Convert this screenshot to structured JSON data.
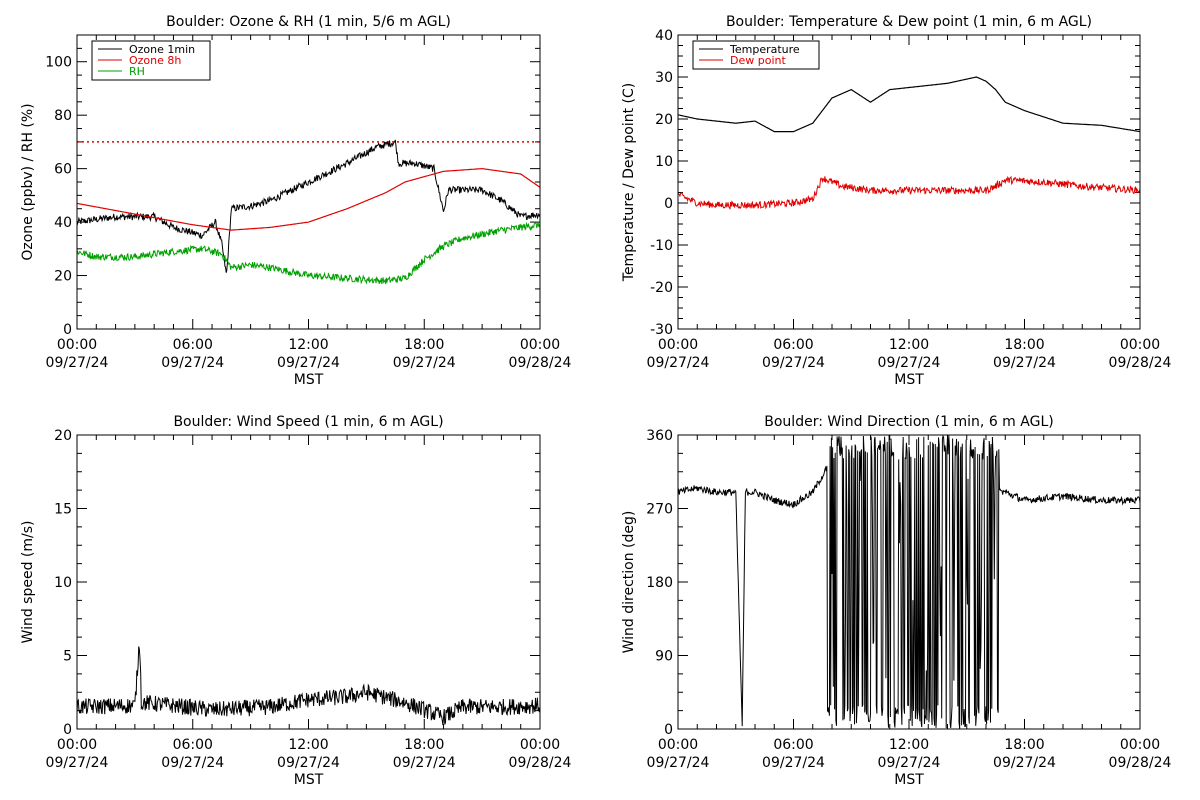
{
  "x_axis": {
    "label": "MST",
    "range": [
      "09/27/24 00:00",
      "09/28/24 00:00"
    ],
    "ticks": [
      {
        "time": "09/27/24 00:00",
        "hour": "00:00",
        "date": "09/27/24"
      },
      {
        "time": "09/27/24 06:00",
        "hour": "06:00",
        "date": "09/27/24"
      },
      {
        "time": "09/27/24 12:00",
        "hour": "12:00",
        "date": "09/27/24"
      },
      {
        "time": "09/27/24 18:00",
        "hour": "18:00",
        "date": "09/27/24"
      },
      {
        "time": "09/28/24 00:00",
        "hour": "00:00",
        "date": "09/28/24"
      }
    ]
  },
  "colors": {
    "black": "#000000",
    "red": "#e00000",
    "green": "#00a000",
    "background": "#ffffff"
  },
  "chart_data": [
    {
      "type": "line",
      "title": "Boulder: Ozone & RH (1 min, 5/6 m AGL)",
      "ylabel": "Ozone (ppbv) / RH (%)",
      "ylim": [
        0,
        110
      ],
      "yticks": [
        0,
        20,
        40,
        60,
        80,
        100
      ],
      "reference_line": {
        "y": 70,
        "color": "#e00000",
        "style": "dotted"
      },
      "legend": {
        "placement": "top-left",
        "entries": [
          {
            "label": "Ozone 1min",
            "color": "#000000"
          },
          {
            "label": "Ozone 8h",
            "color": "#e00000"
          },
          {
            "label": "RH",
            "color": "#00a000"
          }
        ]
      },
      "series": [
        {
          "name": "Ozone 1min",
          "color": "#000000",
          "style": "noisy",
          "x": [
            "09/27/24 00:00",
            "09/27/24 02:00",
            "09/27/24 04:00",
            "09/27/24 05:00",
            "09/27/24 06:30",
            "09/27/24 07:10",
            "09/27/24 07:30",
            "09/27/24 07:45",
            "09/27/24 08:00",
            "09/27/24 09:00",
            "09/27/24 10:00",
            "09/27/24 12:00",
            "09/27/24 14:00",
            "09/27/24 15:30",
            "09/27/24 16:30",
            "09/27/24 16:40",
            "09/27/24 17:30",
            "09/27/24 18:30",
            "09/27/24 19:00",
            "09/27/24 19:15",
            "09/27/24 19:30",
            "09/27/24 21:00",
            "09/27/24 22:00",
            "09/27/24 23:00",
            "09/28/24 00:00"
          ],
          "y": [
            40,
            42,
            42,
            38,
            35,
            40,
            32,
            20,
            45,
            46,
            48,
            55,
            62,
            68,
            70,
            62,
            62,
            60,
            44,
            52,
            52,
            52,
            48,
            42,
            43
          ]
        },
        {
          "name": "Ozone 8h",
          "color": "#e00000",
          "style": "smooth",
          "x": [
            "09/27/24 00:00",
            "09/27/24 03:00",
            "09/27/24 06:00",
            "09/27/24 08:00",
            "09/27/24 10:00",
            "09/27/24 12:00",
            "09/27/24 14:00",
            "09/27/24 16:00",
            "09/27/24 17:00",
            "09/27/24 19:00",
            "09/27/24 21:00",
            "09/27/24 23:00",
            "09/28/24 00:00"
          ],
          "y": [
            47,
            43,
            39,
            37,
            38,
            40,
            45,
            51,
            55,
            59,
            60,
            58,
            53
          ]
        },
        {
          "name": "RH",
          "color": "#00a000",
          "style": "noisy",
          "x": [
            "09/27/24 00:00",
            "09/27/24 01:00",
            "09/27/24 03:00",
            "09/27/24 05:00",
            "09/27/24 06:30",
            "09/27/24 07:30",
            "09/27/24 08:00",
            "09/27/24 09:00",
            "09/27/24 10:00",
            "09/27/24 12:00",
            "09/27/24 14:00",
            "09/27/24 16:00",
            "09/27/24 17:00",
            "09/27/24 18:00",
            "09/27/24 19:00",
            "09/27/24 20:00",
            "09/27/24 22:00",
            "09/28/24 00:00"
          ],
          "y": [
            29,
            27,
            27,
            29,
            30,
            28,
            23,
            24,
            23,
            20,
            19,
            18,
            19,
            26,
            31,
            34,
            37,
            39
          ]
        }
      ]
    },
    {
      "type": "line",
      "title": "Boulder: Temperature & Dew point (1 min, 6 m AGL)",
      "ylabel": "Temperature / Dew point (C)",
      "ylim": [
        -30,
        40
      ],
      "yticks": [
        -30,
        -20,
        -10,
        0,
        10,
        20,
        30,
        40
      ],
      "legend": {
        "placement": "top-left",
        "entries": [
          {
            "label": "Temperature",
            "color": "#000000"
          },
          {
            "label": "Dew point",
            "color": "#e00000"
          }
        ]
      },
      "series": [
        {
          "name": "Temperature",
          "color": "#000000",
          "style": "smooth",
          "x": [
            "09/27/24 00:00",
            "09/27/24 01:00",
            "09/27/24 02:00",
            "09/27/24 03:00",
            "09/27/24 04:00",
            "09/27/24 05:00",
            "09/27/24 06:00",
            "09/27/24 07:00",
            "09/27/24 08:00",
            "09/27/24 09:00",
            "09/27/24 10:00",
            "09/27/24 11:00",
            "09/27/24 12:00",
            "09/27/24 14:00",
            "09/27/24 15:30",
            "09/27/24 16:00",
            "09/27/24 16:30",
            "09/27/24 17:00",
            "09/27/24 18:00",
            "09/27/24 20:00",
            "09/27/24 22:00",
            "09/28/24 00:00"
          ],
          "y": [
            21,
            20,
            19.5,
            19,
            19.5,
            17,
            17,
            19,
            25,
            27,
            24,
            27,
            27.5,
            28.5,
            30,
            29,
            27,
            24,
            22,
            19,
            18.5,
            17
          ]
        },
        {
          "name": "Dew point",
          "color": "#e00000",
          "style": "noisy",
          "x": [
            "09/27/24 00:00",
            "09/27/24 00:30",
            "09/27/24 01:00",
            "09/27/24 02:00",
            "09/27/24 04:00",
            "09/27/24 06:00",
            "09/27/24 07:00",
            "09/27/24 07:30",
            "09/27/24 08:30",
            "09/27/24 10:00",
            "09/27/24 12:00",
            "09/27/24 14:00",
            "09/27/24 16:00",
            "09/27/24 16:30",
            "09/27/24 17:00",
            "09/27/24 19:00",
            "09/27/24 21:00",
            "09/28/24 00:00"
          ],
          "y": [
            2,
            1,
            0,
            -0.5,
            -0.5,
            0,
            1,
            6,
            4,
            3,
            3,
            3,
            3,
            4,
            5.5,
            5,
            4,
            3
          ]
        }
      ]
    },
    {
      "type": "line",
      "title": "Boulder: Wind Speed (1 min, 6 m AGL)",
      "ylabel": "Wind speed (m/s)",
      "ylim": [
        0,
        20
      ],
      "yticks": [
        0,
        5,
        10,
        15,
        20
      ],
      "series": [
        {
          "name": "",
          "color": "#000000",
          "style": "noisy",
          "x": [
            "09/27/24 00:00",
            "09/27/24 03:00",
            "09/27/24 03:15",
            "09/27/24 03:20",
            "09/27/24 05:00",
            "09/27/24 07:00",
            "09/27/24 10:00",
            "09/27/24 12:00",
            "09/27/24 14:00",
            "09/27/24 15:00",
            "09/27/24 17:00",
            "09/27/24 19:00",
            "09/27/24 20:00",
            "09/27/24 22:00",
            "09/28/24 00:00"
          ],
          "y": [
            1.5,
            1.6,
            6.2,
            1.8,
            1.6,
            1.3,
            1.5,
            2.0,
            2.2,
            2.5,
            1.8,
            0.8,
            1.5,
            1.5,
            1.6
          ]
        }
      ]
    },
    {
      "type": "line",
      "title": "Boulder: Wind Direction (1 min, 6 m AGL)",
      "ylabel": "Wind direction (deg)",
      "ylim": [
        0,
        360
      ],
      "yticks": [
        0,
        90,
        180,
        270,
        360
      ],
      "series": [
        {
          "name": "",
          "color": "#000000",
          "style": "noisy-direction",
          "x": [
            "09/27/24 00:00",
            "09/27/24 01:00",
            "09/27/24 02:00",
            "09/27/24 03:00",
            "09/27/24 03:20",
            "09/27/24 03:30",
            "09/27/24 04:00",
            "09/27/24 05:00",
            "09/27/24 06:00",
            "09/27/24 07:00",
            "09/27/24 07:30",
            "09/27/24 08:00",
            "09/27/24 17:00",
            "09/27/24 18:00",
            "09/27/24 20:00",
            "09/27/24 22:00",
            "09/28/24 00:00"
          ],
          "y": [
            290,
            295,
            290,
            290,
            5,
            290,
            290,
            280,
            275,
            290,
            310,
            330,
            290,
            280,
            285,
            280,
            280
          ],
          "wrap_between": [
            "09/27/24 07:45",
            "09/27/24 16:40"
          ]
        }
      ]
    }
  ]
}
